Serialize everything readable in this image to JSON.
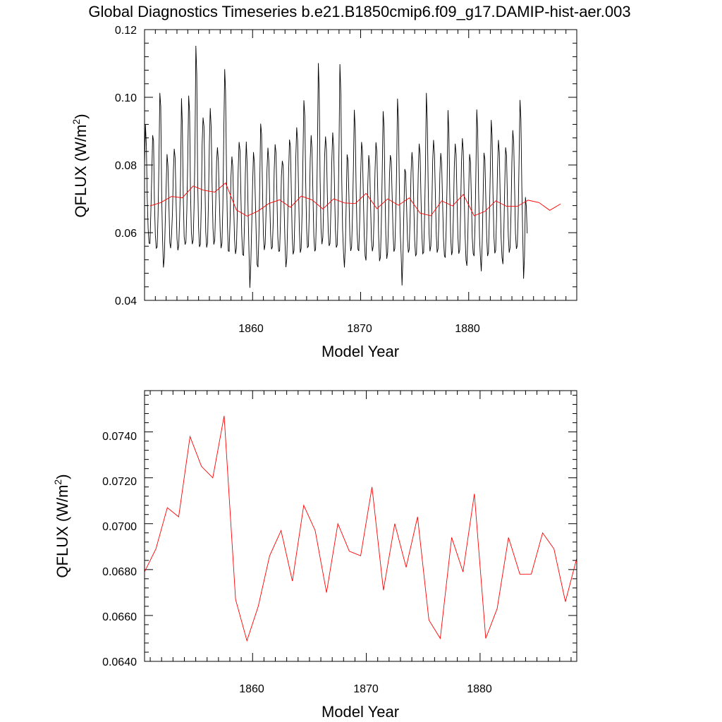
{
  "title": "Global Diagnostics Timeseries b.e21.B1850cmip6.f09_g17.DAMIP-hist-aer.003",
  "chart_data": [
    {
      "type": "line",
      "xlabel": "Model Year",
      "ylabel": "QFLUX (W/m",
      "ylabel_sup": "2",
      "ylabel_close": ")",
      "xlim": [
        1850.0,
        1890.0
      ],
      "ylim": [
        0.04,
        0.12
      ],
      "xticks": [
        1860,
        1870,
        1880
      ],
      "xtick_labels": [
        "1860",
        "1870",
        "1880"
      ],
      "yticks": [
        0.04,
        0.06,
        0.08,
        0.1,
        0.12
      ],
      "ytick_labels": [
        "0.04",
        "0.06",
        "0.08",
        "0.10",
        "0.12"
      ],
      "series": [
        {
          "color": "#000000",
          "x_start": 1850.0,
          "x_step": 0.08333,
          "values": [
            0.0797,
            0.0919,
            0.0857,
            0.0705,
            0.0612,
            0.0569,
            0.0568,
            0.0657,
            0.0763,
            0.0888,
            0.0871,
            0.0695,
            0.0594,
            0.0554,
            0.0558,
            0.0654,
            0.0806,
            0.1013,
            0.0973,
            0.0711,
            0.0584,
            0.0497,
            0.0526,
            0.0634,
            0.0732,
            0.0832,
            0.0797,
            0.0689,
            0.0571,
            0.0554,
            0.0593,
            0.0658,
            0.0782,
            0.0848,
            0.0821,
            0.0697,
            0.0583,
            0.0548,
            0.0563,
            0.0642,
            0.0765,
            0.0997,
            0.0921,
            0.0712,
            0.0588,
            0.0565,
            0.0572,
            0.0667,
            0.0817,
            0.1005,
            0.0956,
            0.0731,
            0.0603,
            0.0566,
            0.0578,
            0.0673,
            0.0842,
            0.1152,
            0.1067,
            0.0762,
            0.0618,
            0.0558,
            0.0566,
            0.0684,
            0.0862,
            0.094,
            0.0914,
            0.0756,
            0.0603,
            0.0556,
            0.0571,
            0.0696,
            0.0859,
            0.0968,
            0.0911,
            0.0744,
            0.0612,
            0.0565,
            0.0579,
            0.0681,
            0.0811,
            0.0852,
            0.0813,
            0.0706,
            0.0604,
            0.0554,
            0.0569,
            0.0678,
            0.0891,
            0.1083,
            0.1019,
            0.0789,
            0.0628,
            0.0546,
            0.0545,
            0.0636,
            0.0765,
            0.0825,
            0.0797,
            0.0683,
            0.0579,
            0.0537,
            0.0554,
            0.0651,
            0.0784,
            0.0868,
            0.0843,
            0.0716,
            0.0594,
            0.0535,
            0.0533,
            0.0627,
            0.0776,
            0.0869,
            0.0799,
            0.0663,
            0.0546,
            0.0437,
            0.0507,
            0.0618,
            0.0736,
            0.0838,
            0.0807,
            0.0703,
            0.0592,
            0.0506,
            0.0498,
            0.0592,
            0.0755,
            0.0922,
            0.0891,
            0.0728,
            0.0593,
            0.0549,
            0.0566,
            0.0666,
            0.0786,
            0.0851,
            0.0813,
            0.0698,
            0.0595,
            0.0551,
            0.0558,
            0.0638,
            0.0783,
            0.0861,
            0.0837,
            0.0717,
            0.0587,
            0.0545,
            0.0546,
            0.0633,
            0.0765,
            0.0812,
            0.0797,
            0.0679,
            0.0572,
            0.0498,
            0.0524,
            0.0633,
            0.0773,
            0.0875,
            0.0855,
            0.0723,
            0.0592,
            0.0536,
            0.0547,
            0.0656,
            0.0818,
            0.0911,
            0.0872,
            0.0729,
            0.0606,
            0.0541,
            0.0554,
            0.0662,
            0.0837,
            0.0991,
            0.0945,
            0.0748,
            0.0611,
            0.0556,
            0.056,
            0.0664,
            0.0818,
            0.0888,
            0.0847,
            0.0717,
            0.0592,
            0.0545,
            0.0551,
            0.0655,
            0.0839,
            0.1101,
            0.1021,
            0.0761,
            0.0611,
            0.0566,
            0.0586,
            0.0684,
            0.0826,
            0.0884,
            0.0845,
            0.0719,
            0.0605,
            0.0561,
            0.0569,
            0.0667,
            0.0811,
            0.0896,
            0.0854,
            0.0727,
            0.0608,
            0.0556,
            0.0564,
            0.0667,
            0.0848,
            0.1098,
            0.1012,
            0.0759,
            0.0611,
            0.0541,
            0.0497,
            0.0562,
            0.0693,
            0.0831,
            0.0812,
            0.0706,
            0.0592,
            0.0546,
            0.0558,
            0.0656,
            0.0797,
            0.0963,
            0.0907,
            0.0729,
            0.0603,
            0.0551,
            0.0546,
            0.0638,
            0.0766,
            0.0868,
            0.0843,
            0.0714,
            0.0591,
            0.0531,
            0.0518,
            0.0614,
            0.0745,
            0.0829,
            0.0796,
            0.0688,
            0.0581,
            0.0545,
            0.0561,
            0.0654,
            0.0782,
            0.0867,
            0.0839,
            0.0716,
            0.0589,
            0.0516,
            0.0528,
            0.0633,
            0.0777,
            0.0959,
            0.0914,
            0.0727,
            0.0594,
            0.0523,
            0.0541,
            0.0637,
            0.0769,
            0.0829,
            0.0812,
            0.0708,
            0.0597,
            0.0544,
            0.0553,
            0.0655,
            0.0796,
            0.0996,
            0.0935,
            0.0738,
            0.0598,
            0.0532,
            0.0444,
            0.0527,
            0.0662,
            0.0788,
            0.0779,
            0.0684,
            0.0581,
            0.0541,
            0.0551,
            0.0649,
            0.0779,
            0.0838,
            0.0801,
            0.0689,
            0.0578,
            0.0532,
            0.0537,
            0.0638,
            0.0778,
            0.0863,
            0.0834,
            0.0712,
            0.0596,
            0.0538,
            0.0542,
            0.0647,
            0.0792,
            0.1013,
            0.0932,
            0.0738,
            0.0599,
            0.0545,
            0.0561,
            0.0666,
            0.0814,
            0.0874,
            0.0832,
            0.0711,
            0.0592,
            0.0541,
            0.0553,
            0.0647,
            0.0774,
            0.0835,
            0.0805,
            0.0691,
            0.0582,
            0.0532,
            0.0526,
            0.0609,
            0.0745,
            0.0962,
            0.0898,
            0.0718,
            0.0588,
            0.0534,
            0.0545,
            0.0645,
            0.0793,
            0.0863,
            0.0832,
            0.0708,
            0.0591,
            0.0538,
            0.0549,
            0.0656,
            0.0806,
            0.0879,
            0.0841,
            0.0717,
            0.0594,
            0.0519,
            0.0502,
            0.0588,
            0.0718,
            0.0832,
            0.0808,
            0.0696,
            0.0585,
            0.0538,
            0.0531,
            0.0621,
            0.0768,
            0.0964,
            0.0901,
            0.0721,
            0.0586,
            0.0531,
            0.0486,
            0.0569,
            0.0706,
            0.0836,
            0.0817,
            0.0703,
            0.0587,
            0.0531,
            0.0542,
            0.0649,
            0.0782,
            0.0933,
            0.0887,
            0.0717,
            0.0591,
            0.0539,
            0.0548,
            0.0647,
            0.0788,
            0.0874,
            0.0837,
            0.0707,
            0.0587,
            0.0526,
            0.0507,
            0.0591,
            0.0732,
            0.0852,
            0.0828,
            0.0707,
            0.0591,
            0.0541,
            0.0556,
            0.0663,
            0.0809,
            0.0903,
            0.0865,
            0.0727,
            0.0597,
            0.0552,
            0.0563,
            0.0659,
            0.0814,
            0.0992,
            0.0935,
            0.0734,
            0.0592,
            0.0464,
            0.0531,
            0.0705,
            0.0677,
            0.0598
          ]
        },
        {
          "color": "#ff0000",
          "x": [
            1850.5,
            1851.5,
            1852.5,
            1853.5,
            1854.5,
            1855.5,
            1856.5,
            1857.5,
            1858.5,
            1859.5,
            1860.5,
            1861.5,
            1862.5,
            1863.5,
            1864.5,
            1865.5,
            1866.5,
            1867.5,
            1868.5,
            1869.5,
            1870.5,
            1871.5,
            1872.5,
            1873.5,
            1874.5,
            1875.5,
            1876.5,
            1877.5,
            1878.5,
            1879.5,
            1880.5,
            1881.5,
            1882.5,
            1883.5,
            1884.5,
            1885.5,
            1886.5,
            1887.5,
            1888.5
          ],
          "values": [
            0.0679,
            0.0689,
            0.0707,
            0.0703,
            0.0738,
            0.0725,
            0.072,
            0.0747,
            0.0667,
            0.0649,
            0.0664,
            0.0686,
            0.0697,
            0.0675,
            0.0708,
            0.0697,
            0.067,
            0.07,
            0.0688,
            0.0686,
            0.0716,
            0.0671,
            0.07,
            0.0681,
            0.0703,
            0.0658,
            0.065,
            0.0694,
            0.0679,
            0.0713,
            0.065,
            0.0663,
            0.0694,
            0.0678,
            0.0678,
            0.0696,
            0.0689,
            0.0666,
            0.0685
          ]
        }
      ]
    },
    {
      "type": "line",
      "xlabel": "Model Year",
      "ylabel": "QFLUX (W/m",
      "ylabel_sup": "2",
      "ylabel_close": ")",
      "xlim": [
        1850.5,
        1888.5
      ],
      "ylim": [
        0.064,
        0.0758
      ],
      "xticks": [
        1860,
        1870,
        1880
      ],
      "xtick_labels": [
        "1860",
        "1870",
        "1880"
      ],
      "yticks": [
        0.064,
        0.066,
        0.068,
        0.07,
        0.072,
        0.074
      ],
      "ytick_labels": [
        "0.0640",
        "0.0660",
        "0.0680",
        "0.0700",
        "0.0720",
        "0.0740"
      ],
      "series": [
        {
          "color": "#ff0000",
          "x": [
            1850.5,
            1851.5,
            1852.5,
            1853.5,
            1854.5,
            1855.5,
            1856.5,
            1857.5,
            1858.5,
            1859.5,
            1860.5,
            1861.5,
            1862.5,
            1863.5,
            1864.5,
            1865.5,
            1866.5,
            1867.5,
            1868.5,
            1869.5,
            1870.5,
            1871.5,
            1872.5,
            1873.5,
            1874.5,
            1875.5,
            1876.5,
            1877.5,
            1878.5,
            1879.5,
            1880.5,
            1881.5,
            1882.5,
            1883.5,
            1884.5,
            1885.5,
            1886.5,
            1887.5,
            1888.5
          ],
          "values": [
            0.0679,
            0.0689,
            0.0707,
            0.0703,
            0.0738,
            0.0725,
            0.072,
            0.0747,
            0.0667,
            0.0649,
            0.0664,
            0.0686,
            0.0697,
            0.0675,
            0.0708,
            0.0697,
            0.067,
            0.07,
            0.0688,
            0.0686,
            0.0716,
            0.0671,
            0.07,
            0.0681,
            0.0703,
            0.0658,
            0.065,
            0.0694,
            0.0679,
            0.0713,
            0.065,
            0.0663,
            0.0694,
            0.0678,
            0.0678,
            0.0696,
            0.0689,
            0.0666,
            0.0685
          ]
        }
      ]
    }
  ]
}
